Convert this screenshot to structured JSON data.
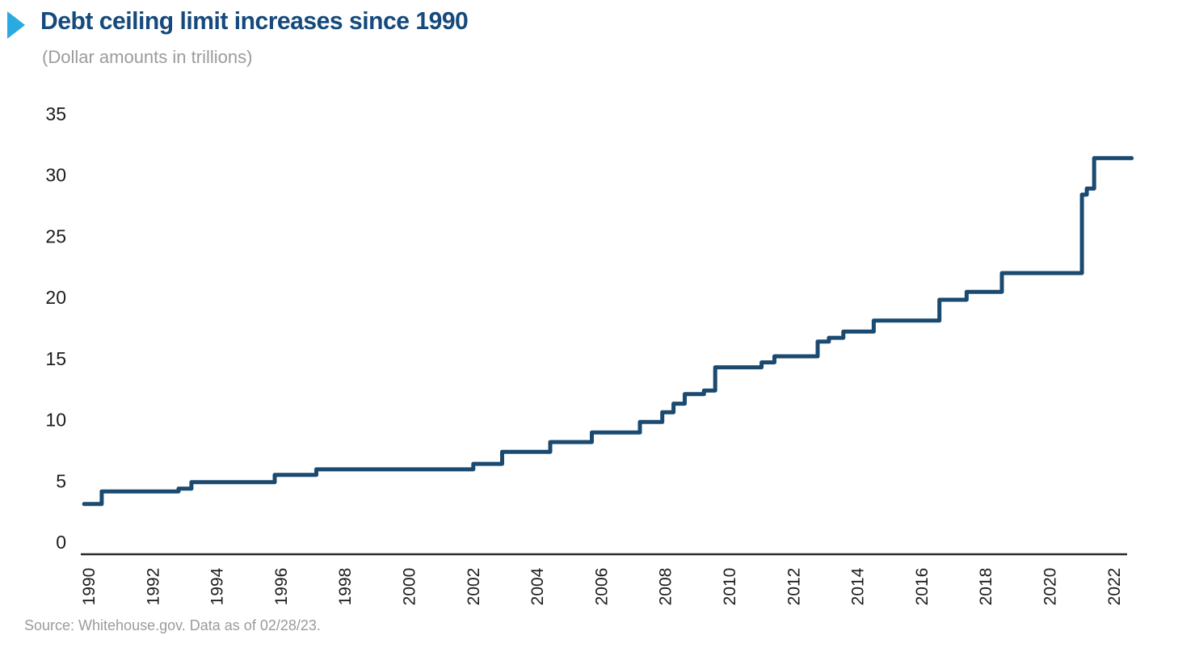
{
  "header": {
    "title": "Debt ceiling limit increases since 1990",
    "subtitle": "(Dollar amounts in trillions)",
    "accent_color": "#29abe2",
    "title_color": "#164a7c"
  },
  "footer": {
    "source": "Source: Whitehouse.gov. Data as of 02/28/23."
  },
  "chart_data": {
    "type": "line",
    "subtype": "step",
    "title": "Debt ceiling limit increases since 1990",
    "subtitle": "(Dollar amounts in trillions)",
    "unit": "USD trillions",
    "grid": false,
    "legend": false,
    "line_color": "#1b4a70",
    "axis_color": "#2b2a2a",
    "tick_label_color": "#1c1c1c",
    "ylim": [
      0,
      35
    ],
    "xlim": [
      1989.7,
      2023.0
    ],
    "ylabel": "",
    "xlabel": "",
    "y_ticks": [
      "0",
      "5",
      "10",
      "15",
      "20",
      "25",
      "30",
      "35"
    ],
    "y_tick_values": [
      0,
      5,
      10,
      15,
      20,
      25,
      30,
      35
    ],
    "x_ticks": [
      "1990",
      "1992",
      "1994",
      "1996",
      "1998",
      "2000",
      "2002",
      "2004",
      "2006",
      "2008",
      "2010",
      "2012",
      "2014",
      "2016",
      "2018",
      "2020",
      "2022"
    ],
    "x_tick_values": [
      1990,
      1992,
      1994,
      1996,
      1998,
      2000,
      2002,
      2004,
      2006,
      2008,
      2010,
      2012,
      2014,
      2016,
      2018,
      2020,
      2022
    ],
    "x_start": 1989.85,
    "x_end": 2022.55,
    "steps_note": "each entry = [year increase takes effect, new debt ceiling in $ trillions]",
    "steps": [
      [
        1989.85,
        3.12
      ],
      [
        1990.4,
        4.15
      ],
      [
        1992.8,
        4.37
      ],
      [
        1993.2,
        4.9
      ],
      [
        1995.8,
        5.5
      ],
      [
        1997.1,
        5.95
      ],
      [
        2002.0,
        6.4
      ],
      [
        2002.9,
        7.38
      ],
      [
        2004.4,
        8.18
      ],
      [
        2005.7,
        8.96
      ],
      [
        2007.2,
        9.82
      ],
      [
        2007.9,
        10.62
      ],
      [
        2008.25,
        11.32
      ],
      [
        2008.6,
        12.1
      ],
      [
        2009.2,
        12.39
      ],
      [
        2009.55,
        14.29
      ],
      [
        2011.0,
        14.69
      ],
      [
        2011.4,
        15.19
      ],
      [
        2012.75,
        16.39
      ],
      [
        2013.1,
        16.7
      ],
      [
        2013.55,
        17.21
      ],
      [
        2014.5,
        18.11
      ],
      [
        2016.55,
        19.81
      ],
      [
        2017.4,
        20.46
      ],
      [
        2018.5,
        21.99
      ],
      [
        2021.0,
        28.4
      ],
      [
        2021.15,
        28.9
      ],
      [
        2021.38,
        31.38
      ]
    ]
  }
}
